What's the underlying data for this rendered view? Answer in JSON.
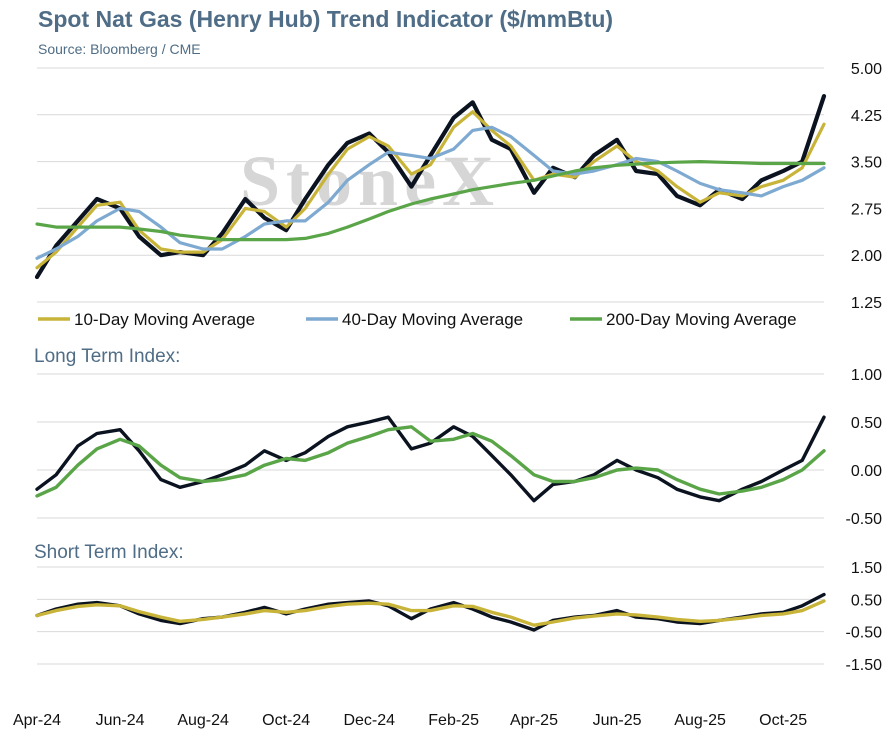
{
  "header": {
    "title": "Spot Nat Gas (Henry Hub) Trend Indicator ($/mmBtu)",
    "subtitle": "Source: Bloomberg / CME"
  },
  "watermark": "StoneX",
  "colors": {
    "title": "#4f6d86",
    "spot": "#0b1320",
    "ma10": "#c9b43a",
    "ma40": "#7ea9d1",
    "ma200": "#5aa548",
    "index_long": "#0b1320",
    "index_ma": "#5aa548",
    "short_index": "#0b1320",
    "short_ma": "#c9b43a"
  },
  "chart_data": [
    {
      "type": "line",
      "panel": "price",
      "ylim": [
        1.25,
        5.0
      ],
      "yticks": [
        "5.00",
        "4.25",
        "3.50",
        "2.75",
        "2.00",
        "1.25"
      ],
      "x": [
        "2024-04-01",
        "2024-04-15",
        "2024-05-01",
        "2024-05-15",
        "2024-06-01",
        "2024-06-15",
        "2024-07-01",
        "2024-07-15",
        "2024-08-01",
        "2024-08-15",
        "2024-09-01",
        "2024-09-15",
        "2024-10-01",
        "2024-10-15",
        "2024-11-01",
        "2024-11-15",
        "2024-12-01",
        "2024-12-15",
        "2025-01-01",
        "2025-01-15",
        "2025-02-01",
        "2025-02-15",
        "2025-03-01",
        "2025-03-15",
        "2025-04-01",
        "2025-04-15",
        "2025-05-01",
        "2025-05-15",
        "2025-06-01",
        "2025-06-15",
        "2025-07-01",
        "2025-07-15",
        "2025-08-01",
        "2025-08-15",
        "2025-09-01",
        "2025-09-15",
        "2025-10-01",
        "2025-10-15",
        "2025-10-31"
      ],
      "series": [
        {
          "name": "Spot",
          "values": [
            1.65,
            2.15,
            2.55,
            2.9,
            2.75,
            2.3,
            2.0,
            2.05,
            2.0,
            2.35,
            2.9,
            2.6,
            2.4,
            2.9,
            3.45,
            3.8,
            3.95,
            3.65,
            3.1,
            3.6,
            4.2,
            4.45,
            3.85,
            3.7,
            3.0,
            3.4,
            3.25,
            3.6,
            3.85,
            3.35,
            3.3,
            2.95,
            2.8,
            3.05,
            2.9,
            3.2,
            3.35,
            3.5,
            4.55
          ]
        },
        {
          "name": "10-Day Moving Average",
          "values": [
            1.8,
            2.05,
            2.45,
            2.8,
            2.85,
            2.4,
            2.1,
            2.05,
            2.05,
            2.25,
            2.75,
            2.7,
            2.45,
            2.75,
            3.3,
            3.7,
            3.9,
            3.75,
            3.3,
            3.45,
            4.05,
            4.3,
            4.0,
            3.75,
            3.2,
            3.3,
            3.25,
            3.5,
            3.75,
            3.5,
            3.35,
            3.1,
            2.85,
            3.0,
            2.95,
            3.1,
            3.2,
            3.4,
            4.1
          ]
        },
        {
          "name": "40-Day Moving Average",
          "values": [
            1.95,
            2.1,
            2.3,
            2.55,
            2.75,
            2.7,
            2.45,
            2.2,
            2.1,
            2.1,
            2.3,
            2.5,
            2.55,
            2.55,
            2.85,
            3.2,
            3.45,
            3.65,
            3.6,
            3.55,
            3.7,
            4.0,
            4.05,
            3.9,
            3.6,
            3.35,
            3.3,
            3.35,
            3.45,
            3.55,
            3.5,
            3.35,
            3.15,
            3.05,
            3.0,
            2.95,
            3.1,
            3.2,
            3.4
          ]
        },
        {
          "name": "200-Day Moving Average",
          "values": [
            2.5,
            2.45,
            2.45,
            2.45,
            2.45,
            2.42,
            2.38,
            2.32,
            2.28,
            2.25,
            2.25,
            2.25,
            2.25,
            2.27,
            2.35,
            2.45,
            2.58,
            2.7,
            2.82,
            2.9,
            2.98,
            3.05,
            3.1,
            3.15,
            3.2,
            3.27,
            3.35,
            3.4,
            3.44,
            3.46,
            3.48,
            3.49,
            3.5,
            3.49,
            3.48,
            3.47,
            3.47,
            3.47,
            3.47
          ]
        }
      ]
    },
    {
      "type": "line",
      "panel": "long_term",
      "title": "Long Term Index:",
      "ylim": [
        -0.5,
        1.0
      ],
      "yticks": [
        "1.00",
        "0.50",
        "0.00",
        "-0.50"
      ],
      "x": [
        "2024-04-01",
        "2024-04-15",
        "2024-05-01",
        "2024-05-15",
        "2024-06-01",
        "2024-06-15",
        "2024-07-01",
        "2024-07-15",
        "2024-08-01",
        "2024-08-15",
        "2024-09-01",
        "2024-09-15",
        "2024-10-01",
        "2024-10-15",
        "2024-11-01",
        "2024-11-15",
        "2024-12-01",
        "2024-12-15",
        "2025-01-01",
        "2025-01-15",
        "2025-02-01",
        "2025-02-15",
        "2025-03-01",
        "2025-03-15",
        "2025-04-01",
        "2025-04-15",
        "2025-05-01",
        "2025-05-15",
        "2025-06-01",
        "2025-06-15",
        "2025-07-01",
        "2025-07-15",
        "2025-08-01",
        "2025-08-15",
        "2025-09-01",
        "2025-09-15",
        "2025-10-01",
        "2025-10-15",
        "2025-10-31"
      ],
      "series": [
        {
          "values": [
            -0.2,
            -0.05,
            0.25,
            0.38,
            0.42,
            0.2,
            -0.1,
            -0.18,
            -0.12,
            -0.05,
            0.05,
            0.2,
            0.1,
            0.18,
            0.35,
            0.45,
            0.5,
            0.55,
            0.22,
            0.28,
            0.45,
            0.35,
            0.15,
            -0.05,
            -0.32,
            -0.15,
            -0.12,
            -0.05,
            0.1,
            0.0,
            -0.08,
            -0.2,
            -0.28,
            -0.32,
            -0.2,
            -0.12,
            0.0,
            0.1,
            0.55
          ]
        },
        {
          "values": [
            -0.27,
            -0.18,
            0.05,
            0.22,
            0.32,
            0.25,
            0.05,
            -0.08,
            -0.12,
            -0.1,
            -0.05,
            0.05,
            0.12,
            0.1,
            0.18,
            0.28,
            0.35,
            0.42,
            0.45,
            0.3,
            0.32,
            0.38,
            0.3,
            0.15,
            -0.05,
            -0.12,
            -0.12,
            -0.08,
            0.0,
            0.02,
            0.0,
            -0.1,
            -0.2,
            -0.25,
            -0.22,
            -0.18,
            -0.1,
            0.0,
            0.2
          ]
        }
      ]
    },
    {
      "type": "line",
      "panel": "short_term",
      "title": "Short Term Index:",
      "ylim": [
        -1.5,
        1.5
      ],
      "yticks": [
        "1.50",
        "0.50",
        "-0.50",
        "-1.50"
      ],
      "x": [
        "2024-04-01",
        "2024-04-15",
        "2024-05-01",
        "2024-05-15",
        "2024-06-01",
        "2024-06-15",
        "2024-07-01",
        "2024-07-15",
        "2024-08-01",
        "2024-08-15",
        "2024-09-01",
        "2024-09-15",
        "2024-10-01",
        "2024-10-15",
        "2024-11-01",
        "2024-11-15",
        "2024-12-01",
        "2024-12-15",
        "2025-01-01",
        "2025-01-15",
        "2025-02-01",
        "2025-02-15",
        "2025-03-01",
        "2025-03-15",
        "2025-04-01",
        "2025-04-15",
        "2025-05-01",
        "2025-05-15",
        "2025-06-01",
        "2025-06-15",
        "2025-07-01",
        "2025-07-15",
        "2025-08-01",
        "2025-08-15",
        "2025-09-01",
        "2025-09-15",
        "2025-10-01",
        "2025-10-15",
        "2025-10-31"
      ],
      "series": [
        {
          "values": [
            0.0,
            0.2,
            0.35,
            0.4,
            0.3,
            0.05,
            -0.15,
            -0.25,
            -0.1,
            -0.05,
            0.1,
            0.25,
            0.05,
            0.2,
            0.35,
            0.4,
            0.45,
            0.3,
            -0.1,
            0.2,
            0.4,
            0.2,
            -0.05,
            -0.2,
            -0.45,
            -0.15,
            -0.05,
            0.0,
            0.15,
            -0.05,
            -0.1,
            -0.2,
            -0.25,
            -0.15,
            -0.05,
            0.05,
            0.1,
            0.3,
            0.65
          ]
        },
        {
          "values": [
            0.0,
            0.15,
            0.28,
            0.33,
            0.3,
            0.12,
            -0.05,
            -0.18,
            -0.12,
            -0.05,
            0.05,
            0.15,
            0.1,
            0.15,
            0.28,
            0.35,
            0.38,
            0.35,
            0.15,
            0.15,
            0.3,
            0.28,
            0.1,
            -0.05,
            -0.3,
            -0.2,
            -0.08,
            -0.02,
            0.05,
            0.02,
            -0.05,
            -0.12,
            -0.18,
            -0.15,
            -0.08,
            0.0,
            0.05,
            0.15,
            0.45
          ]
        }
      ]
    }
  ],
  "x_axis": {
    "tick_labels": [
      "Apr-24",
      "Jun-24",
      "Aug-24",
      "Oct-24",
      "Dec-24",
      "Feb-25",
      "Apr-25",
      "Jun-25",
      "Aug-25",
      "Oct-25"
    ],
    "tick_dates": [
      "2024-04-01",
      "2024-06-01",
      "2024-08-01",
      "2024-10-01",
      "2024-12-01",
      "2025-02-01",
      "2025-04-01",
      "2025-06-01",
      "2025-08-01",
      "2025-10-01"
    ],
    "range": [
      "2024-04-01",
      "2025-10-31"
    ]
  },
  "legend": [
    {
      "label": "10-Day Moving Average",
      "color": "#c9b43a"
    },
    {
      "label": "40-Day Moving Average",
      "color": "#7ea9d1"
    },
    {
      "label": "200-Day Moving Average",
      "color": "#5aa548"
    }
  ]
}
